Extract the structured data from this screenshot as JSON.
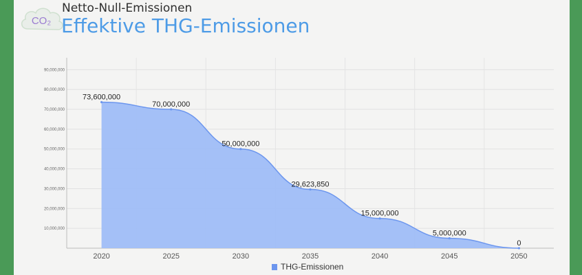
{
  "header": {
    "logo_text": "CO₂",
    "supertitle": "Netto-Null-Emissionen",
    "title": "Effektive THG-Emissionen"
  },
  "colors": {
    "area_fill": "#9fbdf7",
    "line": "#6c96ee",
    "title": "#4d9be6",
    "frame": "#4a9a57"
  },
  "chart_data": {
    "type": "area",
    "x": [
      2020,
      2025,
      2030,
      2035,
      2040,
      2045,
      2050
    ],
    "series": [
      {
        "name": "THG-Emissionen",
        "values": [
          73600000,
          70000000,
          50000000,
          29623850,
          15000000,
          5000000,
          0
        ]
      }
    ],
    "data_labels": [
      "73,600,000",
      "70,000,000",
      "50,000,000",
      "29,623,850",
      "15,000,000",
      "5,000,000",
      "0"
    ],
    "y_ticks": [
      10000000,
      20000000,
      30000000,
      40000000,
      50000000,
      60000000,
      70000000,
      80000000,
      90000000
    ],
    "y_tick_labels": [
      "10,000,000",
      "20,000,000",
      "30,000,000",
      "40,000,000",
      "50,000,000",
      "60,000,000",
      "70,000,000",
      "80,000,000",
      "90,000,000"
    ],
    "x_tick_labels": [
      "2020",
      "2025",
      "2030",
      "2035",
      "2040",
      "2045",
      "2050"
    ],
    "ylim": [
      0,
      96000000
    ],
    "xlim": [
      2017.5,
      2052.5
    ],
    "grid": true,
    "legend_position": "bottom-center"
  }
}
